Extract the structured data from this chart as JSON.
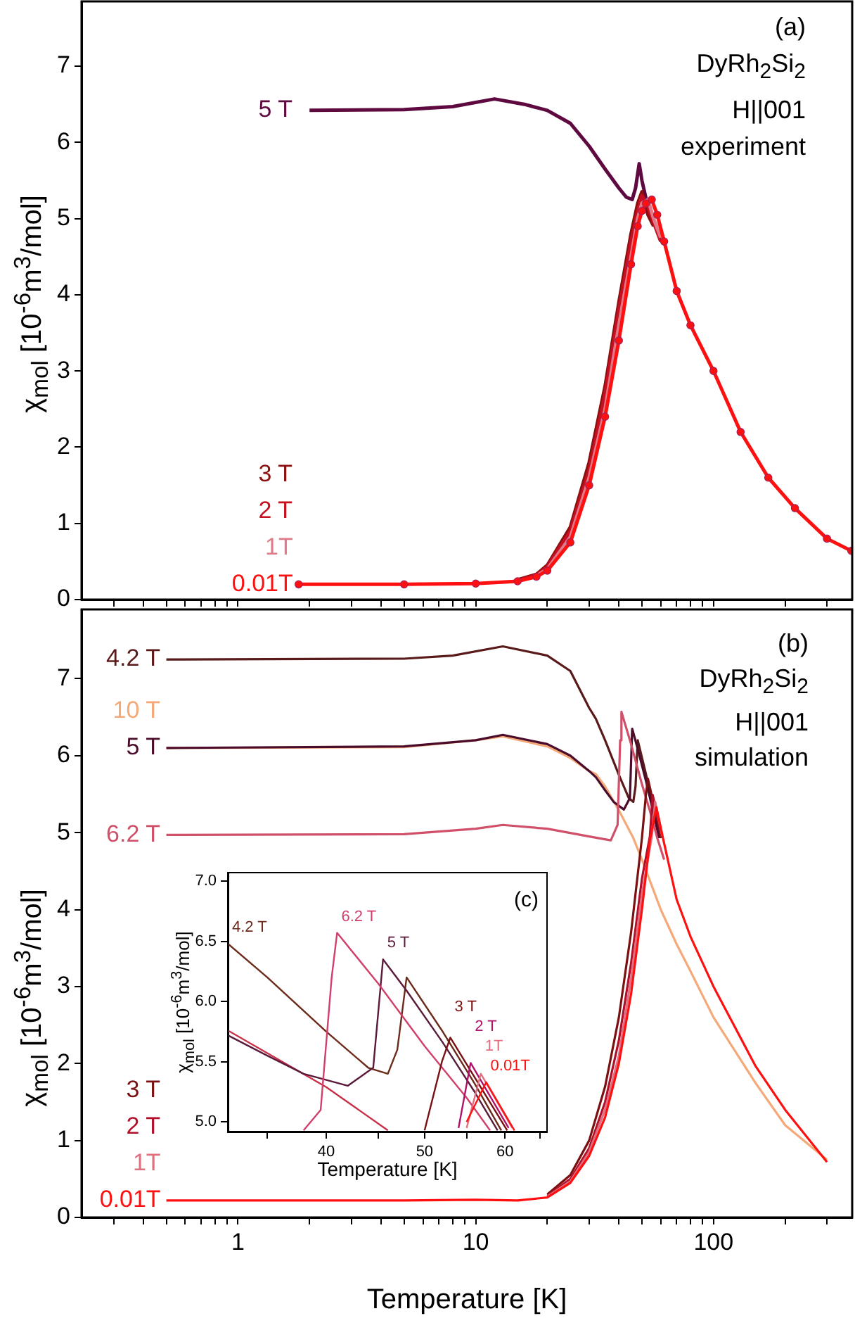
{
  "chart_data": [
    {
      "type": "line",
      "log": "x",
      "tick_labels": "y",
      "ylabel": "χ$_{mol}$ [10$^{-6}$m$^{3}$/mol]",
      "annotations": [
        "(a)",
        "DyRh$_{2}$Si$_{2}$",
        "H||001",
        "experiment"
      ],
      "xlim": [
        0.22,
        383
      ],
      "xticks": [
        {
          "value": 0.3,
          "label": null
        },
        {
          "value": 0.4,
          "label": null
        },
        {
          "value": 0.5,
          "label": null
        },
        {
          "value": 0.6,
          "label": null
        },
        {
          "value": 0.7,
          "label": null
        },
        {
          "value": 0.8,
          "label": null
        },
        {
          "value": 0.9,
          "label": null
        },
        1,
        {
          "value": 2,
          "label": null
        },
        {
          "value": 3,
          "label": null
        },
        {
          "value": 4,
          "label": null
        },
        {
          "value": 5,
          "label": null
        },
        {
          "value": 6,
          "label": null
        },
        {
          "value": 7,
          "label": null
        },
        {
          "value": 8,
          "label": null
        },
        {
          "value": 9,
          "label": null
        },
        10,
        {
          "value": 20,
          "label": null
        },
        {
          "value": 30,
          "label": null
        },
        {
          "value": 40,
          "label": null
        },
        {
          "value": 50,
          "label": null
        },
        {
          "value": 60,
          "label": null
        },
        {
          "value": 70,
          "label": null
        },
        {
          "value": 80,
          "label": null
        },
        {
          "value": 90,
          "label": null
        },
        100,
        {
          "value": 200,
          "label": null
        },
        {
          "value": 300,
          "label": null
        }
      ],
      "ylim": [
        0,
        7.85
      ],
      "yticks": [
        0,
        1,
        2,
        3,
        4,
        5,
        6,
        7
      ],
      "series": [
        {
          "name": "0.01T",
          "color": "#ff1010",
          "marker": "circle",
          "x": [
            1.8,
            5,
            10,
            15,
            18,
            20,
            25,
            30,
            35,
            40,
            45,
            48,
            50,
            52,
            55,
            58,
            62,
            70,
            80,
            100,
            130,
            170,
            220,
            300,
            380
          ],
          "values": [
            0.2,
            0.2,
            0.21,
            0.24,
            0.3,
            0.38,
            0.75,
            1.5,
            2.4,
            3.4,
            4.4,
            4.9,
            5.1,
            5.2,
            5.25,
            5.05,
            4.7,
            4.05,
            3.6,
            3.0,
            2.2,
            1.6,
            1.2,
            0.8,
            0.64
          ]
        },
        {
          "name": "1T",
          "color": "#e07a88",
          "x": [
            18,
            20,
            25,
            30,
            35,
            40,
            45,
            48,
            50,
            53,
            56,
            60
          ],
          "values": [
            0.31,
            0.4,
            0.82,
            1.6,
            2.5,
            3.6,
            4.5,
            5.0,
            5.2,
            5.25,
            5.0,
            4.75
          ]
        },
        {
          "name": "2 T",
          "color": "#c41020",
          "x": [
            15,
            18,
            20,
            25,
            30,
            35,
            40,
            45,
            48,
            50,
            53,
            56,
            60
          ],
          "values": [
            0.25,
            0.32,
            0.43,
            0.9,
            1.7,
            2.7,
            3.8,
            4.7,
            5.1,
            5.3,
            5.15,
            4.95,
            4.7
          ]
        },
        {
          "name": "3 T",
          "color": "#8a0f0f",
          "x": [
            15,
            18,
            20,
            25,
            30,
            35,
            40,
            45,
            48,
            50,
            53,
            56
          ],
          "values": [
            0.26,
            0.33,
            0.45,
            0.95,
            1.8,
            2.8,
            3.9,
            4.8,
            5.2,
            5.35,
            5.05,
            4.9
          ]
        },
        {
          "name": "5 T",
          "color": "#5e0a40",
          "x": [
            2,
            5,
            8,
            12,
            16,
            20,
            25,
            30,
            35,
            40,
            43,
            45.5,
            47,
            48.7,
            50,
            53,
            56
          ],
          "values": [
            6.42,
            6.43,
            6.47,
            6.57,
            6.5,
            6.42,
            6.25,
            5.95,
            5.65,
            5.4,
            5.28,
            5.25,
            5.4,
            5.72,
            5.5,
            5.15,
            5.0
          ]
        }
      ]
    },
    {
      "type": "line",
      "log": "x",
      "xlabel": "Temperature [K]",
      "ylabel": "χ$_{mol}$ [10$^{-6}$m$^{3}$/mol]",
      "annotations": [
        "(b)",
        "DyRh$_{2}$Si$_{2}$",
        "H||001",
        "simulation"
      ],
      "xlim": [
        0.22,
        383
      ],
      "xticks": [
        {
          "value": 0.3,
          "label": null
        },
        {
          "value": 0.4,
          "label": null
        },
        {
          "value": 0.5,
          "label": null
        },
        {
          "value": 0.6,
          "label": null
        },
        {
          "value": 0.7,
          "label": null
        },
        {
          "value": 0.8,
          "label": null
        },
        {
          "value": 0.9,
          "label": null
        },
        1,
        {
          "value": 2,
          "label": null
        },
        {
          "value": 3,
          "label": null
        },
        {
          "value": 4,
          "label": null
        },
        {
          "value": 5,
          "label": null
        },
        {
          "value": 6,
          "label": null
        },
        {
          "value": 7,
          "label": null
        },
        {
          "value": 8,
          "label": null
        },
        {
          "value": 9,
          "label": null
        },
        10,
        {
          "value": 20,
          "label": null
        },
        {
          "value": 30,
          "label": null
        },
        {
          "value": 40,
          "label": null
        },
        {
          "value": 50,
          "label": null
        },
        {
          "value": 60,
          "label": null
        },
        {
          "value": 70,
          "label": null
        },
        {
          "value": 80,
          "label": null
        },
        {
          "value": 90,
          "label": null
        },
        100,
        {
          "value": 200,
          "label": null
        },
        {
          "value": 300,
          "label": null
        }
      ],
      "ylim": [
        0,
        7.9
      ],
      "yticks": [
        0,
        1,
        2,
        3,
        4,
        5,
        6,
        7
      ],
      "series": [
        {
          "name": "0.01T",
          "color": "#ff1010",
          "x": [
            0.5,
            5,
            10,
            15,
            20,
            25,
            30,
            35,
            40,
            45,
            50,
            54,
            57.5,
            61.3,
            70,
            80,
            100,
            150,
            200,
            300
          ],
          "values": [
            0.22,
            0.22,
            0.23,
            0.22,
            0.26,
            0.45,
            0.8,
            1.3,
            2.0,
            2.9,
            4.0,
            4.9,
            5.33,
            4.93,
            4.13,
            3.65,
            3.0,
            1.97,
            1.4,
            0.72
          ]
        },
        {
          "name": "1T",
          "color": "#e07080",
          "x": [
            20,
            25,
            30,
            35,
            40,
            45,
            50,
            55,
            56.8,
            61
          ],
          "values": [
            0.27,
            0.47,
            0.85,
            1.4,
            2.1,
            3.1,
            4.2,
            4.95,
            5.4,
            4.95
          ]
        },
        {
          "name": "2 T",
          "color": "#b0102a",
          "x": [
            20,
            25,
            30,
            35,
            40,
            45,
            50,
            54,
            55.5,
            60.5
          ],
          "values": [
            0.28,
            0.5,
            0.9,
            1.5,
            2.3,
            3.3,
            4.4,
            4.95,
            5.49,
            4.95
          ]
        },
        {
          "name": "3 T",
          "color": "#7a1010",
          "x": [
            20,
            25,
            30,
            35,
            40,
            45,
            50,
            52,
            53,
            60.3
          ],
          "values": [
            0.3,
            0.55,
            1.0,
            1.7,
            2.6,
            3.7,
            4.93,
            5.5,
            5.7,
            4.93
          ]
        },
        {
          "name": "6.2 T",
          "color": "#d0506a",
          "x": [
            0.5,
            5,
            10,
            13,
            20,
            30,
            37,
            39.5,
            40.5,
            41,
            45,
            50,
            55,
            58,
            62
          ],
          "values": [
            4.97,
            4.98,
            5.05,
            5.1,
            5.05,
            4.95,
            4.9,
            5.1,
            6.2,
            6.57,
            6.15,
            5.63,
            5.2,
            4.93,
            4.65
          ]
        },
        {
          "name": "5 T",
          "color": "#4a0c2a",
          "x": [
            0.5,
            5,
            10,
            13,
            20,
            25,
            30,
            32,
            35,
            38,
            42,
            44.5,
            45.5,
            48,
            52,
            56,
            59
          ],
          "values": [
            6.1,
            6.12,
            6.2,
            6.27,
            6.15,
            6.0,
            5.8,
            5.72,
            5.55,
            5.4,
            5.3,
            5.45,
            6.35,
            6.09,
            5.67,
            5.25,
            4.93
          ]
        },
        {
          "name": "10 T",
          "color": "#f5a878",
          "x": [
            0.5,
            5,
            10,
            13,
            20,
            25,
            30,
            32,
            35,
            40,
            46,
            50,
            60,
            70,
            80,
            100,
            150,
            200,
            300
          ],
          "values": [
            6.1,
            6.11,
            6.2,
            6.25,
            6.12,
            5.97,
            5.8,
            5.76,
            5.6,
            5.29,
            4.93,
            4.65,
            4.0,
            3.55,
            3.2,
            2.6,
            1.75,
            1.2,
            0.75
          ]
        },
        {
          "name": "4.2 T",
          "color": "#5a1a1a",
          "x": [
            0.5,
            5,
            8,
            13,
            20,
            25,
            30,
            32,
            35,
            40,
            44,
            46,
            47,
            48,
            52,
            56,
            59.5
          ],
          "values": [
            7.25,
            7.26,
            7.3,
            7.42,
            7.3,
            7.1,
            6.62,
            6.48,
            6.2,
            5.75,
            5.45,
            5.4,
            5.6,
            6.2,
            5.76,
            5.32,
            4.93
          ]
        }
      ]
    },
    {
      "type": "line",
      "log": "x",
      "xlabel": "Temperature [K]",
      "ylabel": "χ$_{mol}$ [10$^{-6}$m$^{3}$/mol]",
      "annotations": [
        "(c)"
      ],
      "xlim": [
        32,
        66
      ],
      "xticks": [
        {
          "value": 35,
          "label": null
        },
        40,
        {
          "value": 45,
          "label": null
        },
        50,
        {
          "value": 55,
          "label": null
        },
        60,
        {
          "value": 65,
          "label": null
        }
      ],
      "ylim": [
        4.92,
        7.07
      ],
      "yticks": [
        {
          "value": 5,
          "label": "5.0"
        },
        {
          "value": 5.5,
          "label": "5.5"
        },
        {
          "value": 6,
          "label": "6.0"
        },
        {
          "value": 6.5,
          "label": "6.5"
        },
        {
          "value": 7,
          "label": "7.0"
        }
      ],
      "series": [
        {
          "name": "0.01T",
          "color": "#ff1010",
          "x": [
            55,
            57.5,
            61.3
          ],
          "values": [
            5.0,
            5.33,
            4.93
          ]
        },
        {
          "name": "1T",
          "color": "#e07080",
          "x": [
            55,
            56.8,
            61
          ],
          "values": [
            4.95,
            5.4,
            4.95
          ]
        },
        {
          "name": "2 T",
          "color": "#b0106a",
          "x": [
            54,
            55.5,
            60.5
          ],
          "values": [
            4.95,
            5.49,
            4.95
          ]
        },
        {
          "name": "3 T",
          "color": "#7a1010",
          "x": [
            50,
            52,
            53,
            60.3
          ],
          "values": [
            4.93,
            5.5,
            5.7,
            4.93
          ]
        },
        {
          "name": "6.2 T",
          "color": "#d0406a",
          "x": [
            38,
            39.5,
            40.5,
            41,
            45,
            50,
            55,
            58
          ],
          "values": [
            4.93,
            5.1,
            6.2,
            6.57,
            6.15,
            5.63,
            5.2,
            4.93
          ]
        },
        {
          "name": "5 T",
          "color": "#5a1a3a",
          "x": [
            32,
            35,
            38,
            42,
            44.5,
            45.5,
            48,
            52,
            56,
            59
          ],
          "values": [
            5.72,
            5.55,
            5.4,
            5.3,
            5.45,
            6.35,
            6.09,
            5.67,
            5.25,
            4.93
          ]
        },
        {
          "name": "4.2 T",
          "color": "#6b2a1a",
          "x": [
            32,
            35,
            40,
            44,
            46,
            47,
            48,
            52,
            56,
            59.5
          ],
          "values": [
            6.48,
            6.2,
            5.75,
            5.45,
            5.4,
            5.6,
            6.2,
            5.76,
            5.32,
            4.93
          ]
        },
        {
          "color": "#c8304a",
          "x": [
            32,
            40,
            46
          ],
          "values": [
            5.76,
            5.29,
            4.93
          ]
        }
      ]
    }
  ]
}
